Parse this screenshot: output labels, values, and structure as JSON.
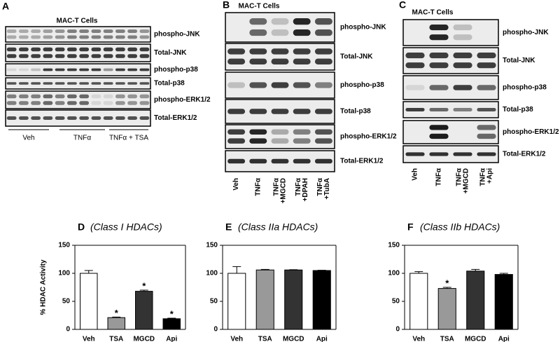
{
  "blots": [
    {
      "letter": "A",
      "title": "MAC-T Cells",
      "rows": [
        "phospho-JNK",
        "Total-JNK",
        "phospho-p38",
        "Total-p38",
        "phospho-ERK1/2",
        "Total-ERK1/2"
      ],
      "groups": [
        "Veh",
        "TNFα",
        "TNFα + TSA"
      ]
    },
    {
      "letter": "B",
      "title": "MAC-T Cells",
      "rows": [
        "phospho-JNK",
        "Total-JNK",
        "phospho-p38",
        "Total-p38",
        "phospho-ERK1/2",
        "Total-ERK1/2"
      ],
      "lanes": [
        [
          "Veh"
        ],
        [
          "TNFα"
        ],
        [
          "TNFα",
          "+MGCD"
        ],
        [
          "TNFα",
          "+DPAH"
        ],
        [
          "TNFα",
          "+TubA"
        ]
      ]
    },
    {
      "letter": "C",
      "title": "MAC-T Cells",
      "rows": [
        "phospho-JNK",
        "Total-JNK",
        "phospho-p38",
        "Total-p38",
        "phospho-ERK1/2",
        "Total-ERK1/2"
      ],
      "lanes": [
        [
          "Veh"
        ],
        [
          "TNFα"
        ],
        [
          "TNFα",
          "+MGCD"
        ],
        [
          "TNFα",
          "+Api"
        ]
      ]
    }
  ],
  "chart_data": [
    {
      "type": "bar",
      "letter": "D",
      "title": "(Class I HDACs)",
      "ylabel": "% HDAC Activity",
      "categories": [
        "Veh",
        "TSA",
        "MGCD",
        "Api"
      ],
      "values": [
        100,
        21,
        68,
        19
      ],
      "errors": [
        5,
        1,
        2,
        1
      ],
      "colors": [
        "#ffffff",
        "#999999",
        "#333333",
        "#000000"
      ],
      "annotations": [
        {
          "x": "TSA",
          "text": "*"
        },
        {
          "x": "MGCD",
          "text": "*"
        },
        {
          "x": "Api",
          "text": "*"
        }
      ],
      "ylim": [
        0,
        150
      ],
      "yticks": [
        0,
        50,
        100,
        150
      ]
    },
    {
      "type": "bar",
      "letter": "E",
      "title": "(Class IIa HDACs)",
      "categories": [
        "Veh",
        "TSA",
        "MGCD",
        "Api"
      ],
      "values": [
        100,
        106,
        106,
        105
      ],
      "errors": [
        12,
        1,
        0.5,
        0.5
      ],
      "colors": [
        "#ffffff",
        "#999999",
        "#333333",
        "#000000"
      ],
      "ylim": [
        0,
        150
      ],
      "yticks": [
        0,
        50,
        100,
        150
      ]
    },
    {
      "type": "bar",
      "letter": "F",
      "title": "(Class IIb HDACs)",
      "categories": [
        "Veh",
        "TSA",
        "MGCD",
        "Api"
      ],
      "values": [
        100,
        73,
        104,
        98
      ],
      "errors": [
        3,
        2,
        3,
        2
      ],
      "colors": [
        "#ffffff",
        "#999999",
        "#333333",
        "#000000"
      ],
      "annotations": [
        {
          "x": "TSA",
          "text": "*"
        }
      ],
      "ylim": [
        0,
        150
      ],
      "yticks": [
        0,
        50,
        100,
        150
      ]
    }
  ]
}
